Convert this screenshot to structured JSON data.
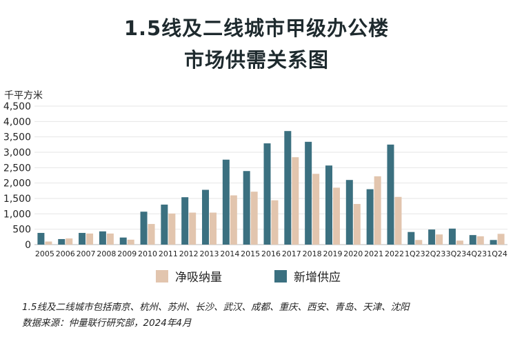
{
  "title_line1": "1.5线及二线城市甲级办公楼",
  "title_line2": "市场供需关系图",
  "unit_label": "千平方米",
  "legend": {
    "absorption_label": "净吸纳量",
    "supply_label": "新增供应",
    "absorption_color": "#e2c5ae",
    "supply_color": "#3b7080"
  },
  "footnote_line1": "1.5线及二线城市包括南京、杭州、苏州、长沙、武汉、成都、重庆、西安、青岛、天津、沈阳",
  "footnote_line2": "数据来源：仲量联行研究部，2024年4月",
  "chart_data": {
    "type": "bar",
    "title": "1.5线及二线城市甲级办公楼市场供需关系图",
    "ylabel": "千平方米",
    "ylim": [
      0,
      4500
    ],
    "yticks": [
      0,
      500,
      1000,
      1500,
      2000,
      2500,
      3000,
      3500,
      4000,
      4500
    ],
    "ytick_labels": [
      "0",
      "500",
      "1,000",
      "1,500",
      "2,000",
      "2,500",
      "3,000",
      "3,500",
      "4,000",
      "4,500"
    ],
    "categories": [
      "2005",
      "2006",
      "2007",
      "2008",
      "2009",
      "2010",
      "2011",
      "2012",
      "2013",
      "2014",
      "2015",
      "2016",
      "2017",
      "2018",
      "2019",
      "2020",
      "2021",
      "2022",
      "1Q23",
      "2Q23",
      "3Q23",
      "4Q23",
      "1Q24"
    ],
    "series": [
      {
        "name": "新增供应",
        "color": "#3b7080",
        "values": [
          380,
          180,
          380,
          430,
          230,
          1070,
          1300,
          1540,
          1780,
          2760,
          2390,
          3290,
          3690,
          3340,
          2570,
          2100,
          1800,
          3250,
          410,
          490,
          520,
          310,
          150
        ]
      },
      {
        "name": "净吸纳量",
        "color": "#e2c5ae",
        "values": [
          100,
          200,
          360,
          360,
          160,
          670,
          1010,
          1040,
          1040,
          1600,
          1720,
          1440,
          2840,
          2300,
          1850,
          1320,
          2220,
          1550,
          150,
          330,
          130,
          270,
          350
        ]
      }
    ],
    "grid": true,
    "legend_position": "bottom"
  }
}
